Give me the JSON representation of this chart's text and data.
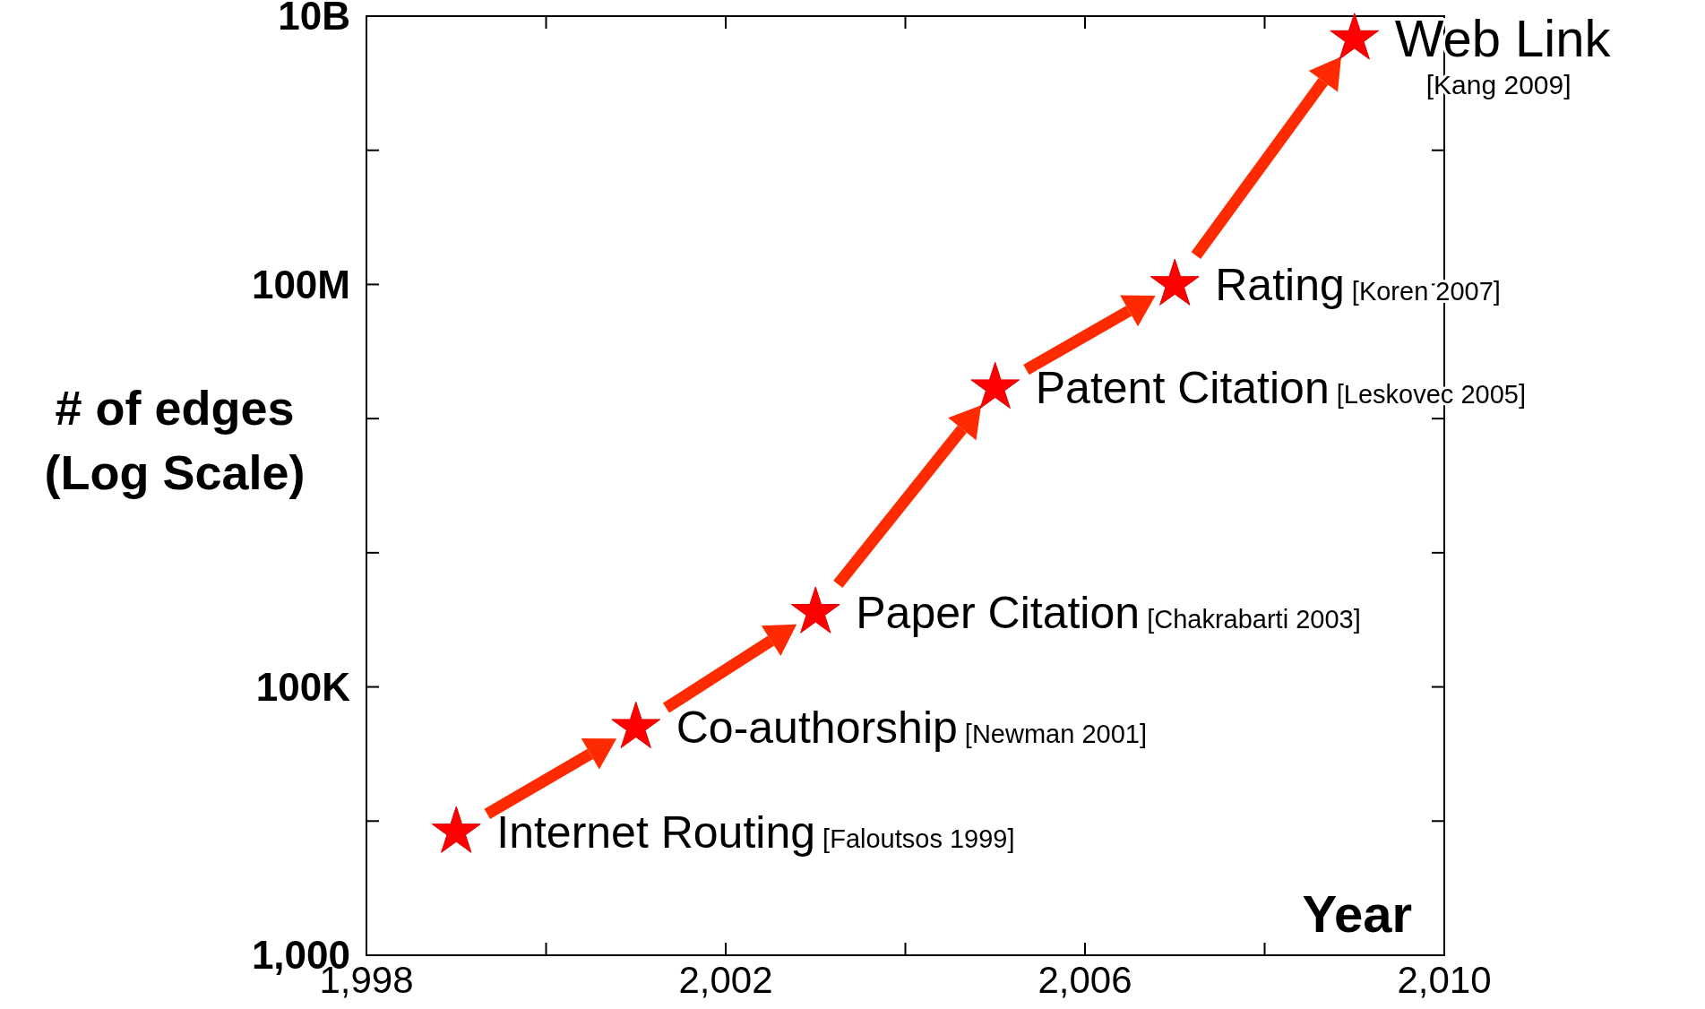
{
  "chart_data": {
    "type": "scatter",
    "xlabel": "Year",
    "ylabel": "# of edges\n(Log Scale)",
    "log": "y",
    "marker": "star",
    "grid": false,
    "x": [
      1999,
      2001,
      2003,
      2005,
      2007,
      2009
    ],
    "series": [
      {
        "color": "#ff0000",
        "values": [
          8300,
          50000,
          360000,
          17000000,
          100000000,
          6800000000
        ]
      }
    ],
    "xlim": [
      1998,
      2010
    ],
    "ylim": [
      1000,
      10000000000
    ],
    "xticks": [
      {
        "value": 1998,
        "label": "1,998"
      },
      {
        "value": 2000,
        "label": null
      },
      {
        "value": 2002,
        "label": "2,002"
      },
      {
        "value": 2004,
        "label": null
      },
      {
        "value": 2006,
        "label": "2,006"
      },
      {
        "value": 2008,
        "label": null
      },
      {
        "value": 2010,
        "label": "2,010"
      }
    ],
    "yticks": [
      {
        "value": 1000,
        "label": "1,000"
      },
      {
        "value": 10000,
        "label": null
      },
      {
        "value": 100000,
        "label": "100K"
      },
      {
        "value": 1000000,
        "label": null
      },
      {
        "value": 10000000,
        "label": null
      },
      {
        "value": 100000000,
        "label": "100M"
      },
      {
        "value": 1000000000,
        "label": null
      },
      {
        "value": 10000000000,
        "label": "10B"
      }
    ],
    "annotations": [
      {
        "text": "Internet Routing [Faloutsos 1999]",
        "x": 1999,
        "y": 8300
      },
      {
        "text": "Co-authorship [Newman 2001]",
        "x": 2001,
        "y": 50000
      },
      {
        "text": "Paper Citation [Chakrabarti 2003]",
        "x": 2003,
        "y": 360000
      },
      {
        "text": "Patent Citation [Leskovec 2005]",
        "x": 2005,
        "y": 17000000
      },
      {
        "text": "Rating [Koren 2007]",
        "x": 2007,
        "y": 100000000
      },
      {
        "text": "Web Link [Kang 2009]",
        "x": 2009,
        "y": 6800000000
      }
    ]
  }
}
